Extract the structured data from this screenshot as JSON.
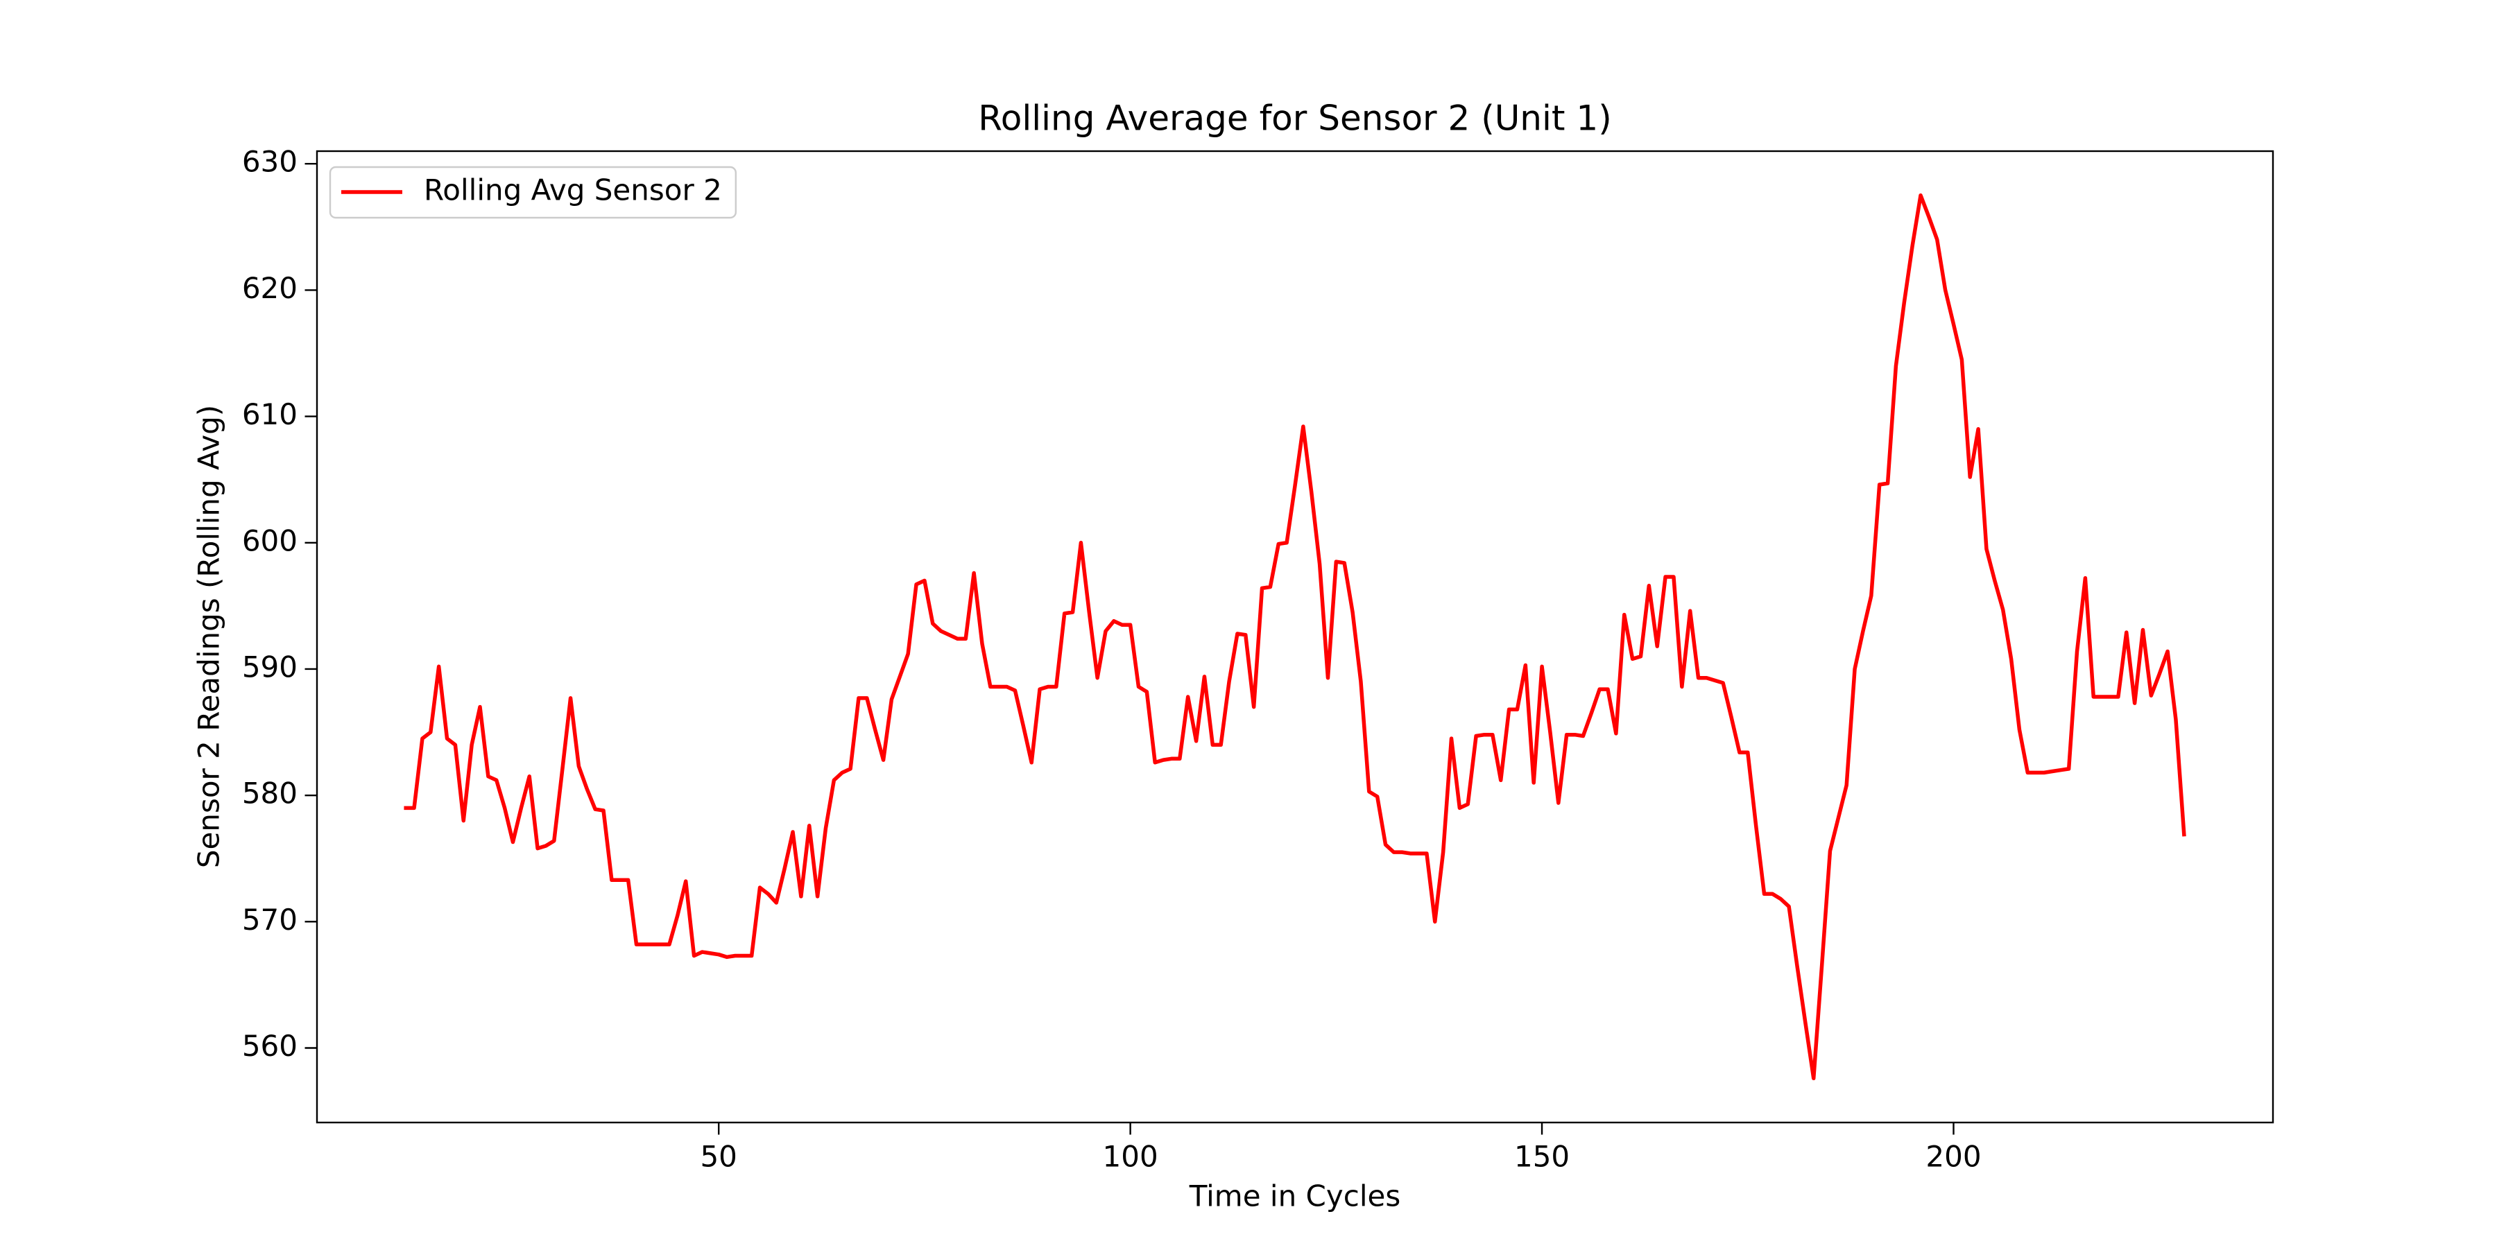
{
  "chart_data": {
    "type": "line",
    "title": "Rolling Average for Sensor 2 (Unit 1)",
    "x_label": "Time in Cycles",
    "y_label": "Sensor 2 Readings (Rolling Avg)",
    "x": [
      12,
      13,
      14,
      15,
      16,
      17,
      18,
      19,
      20,
      21,
      22,
      23,
      24,
      25,
      26,
      27,
      28,
      29,
      30,
      31,
      32,
      33,
      34,
      35,
      36,
      37,
      38,
      39,
      40,
      41,
      42,
      43,
      44,
      45,
      46,
      47,
      48,
      49,
      50,
      51,
      52,
      53,
      54,
      55,
      56,
      57,
      58,
      59,
      60,
      61,
      62,
      63,
      64,
      65,
      66,
      67,
      68,
      69,
      70,
      71,
      72,
      73,
      74,
      75,
      76,
      77,
      78,
      79,
      80,
      81,
      82,
      83,
      84,
      85,
      86,
      87,
      88,
      89,
      90,
      91,
      92,
      93,
      94,
      95,
      96,
      97,
      98,
      99,
      100,
      101,
      102,
      103,
      104,
      105,
      106,
      107,
      108,
      109,
      110,
      111,
      112,
      113,
      114,
      115,
      116,
      117,
      118,
      119,
      120,
      121,
      122,
      123,
      124,
      125,
      126,
      127,
      128,
      129,
      130,
      131,
      132,
      133,
      134,
      135,
      136,
      137,
      138,
      139,
      140,
      141,
      142,
      143,
      144,
      145,
      146,
      147,
      148,
      149,
      150,
      151,
      152,
      153,
      154,
      155,
      156,
      157,
      158,
      159,
      160,
      161,
      162,
      163,
      164,
      165,
      166,
      167,
      168,
      169,
      170,
      171,
      172,
      173,
      174,
      175,
      176,
      177,
      178,
      179,
      180,
      181,
      182,
      183,
      184,
      185,
      186,
      187,
      188,
      189,
      190,
      191,
      192,
      193,
      194,
      195,
      196,
      197,
      198,
      199,
      200,
      201,
      202,
      203,
      204,
      205,
      206,
      207,
      208,
      209,
      210,
      211,
      212,
      213,
      214,
      215,
      216,
      217,
      218,
      219,
      220,
      221,
      222,
      223,
      224,
      225,
      226,
      227,
      228
    ],
    "series": [
      {
        "name": "Rolling Avg Sensor 2",
        "color": "#ff0000",
        "values": [
          579,
          579,
          584.5,
          585,
          590.2,
          584.5,
          584,
          578,
          584,
          587,
          581.5,
          581.2,
          579,
          576.3,
          579,
          581.5,
          575.8,
          576,
          576.4,
          582,
          587.7,
          582.3,
          580.5,
          578.9,
          578.8,
          573.3,
          573.3,
          573.3,
          568.2,
          568.2,
          568.2,
          568.2,
          568.2,
          570.5,
          573.2,
          567.3,
          567.6,
          567.5,
          567.4,
          567.2,
          567.3,
          567.3,
          567.3,
          572.7,
          572.2,
          571.5,
          574.2,
          577.1,
          572,
          577.6,
          572,
          577.4,
          581.2,
          581.8,
          582.1,
          587.7,
          587.7,
          585.2,
          582.8,
          587.6,
          589.4,
          591.2,
          596.7,
          597,
          593.6,
          593,
          592.7,
          592.4,
          592.4,
          597.6,
          592,
          588.6,
          588.6,
          588.6,
          588.3,
          585.5,
          582.6,
          588.4,
          588.6,
          588.6,
          594.4,
          594.5,
          600,
          594.5,
          589.3,
          593,
          593.8,
          593.5,
          593.5,
          588.6,
          588.2,
          582.6,
          582.8,
          582.9,
          582.9,
          587.8,
          584.3,
          589.4,
          584,
          584,
          589,
          592.8,
          592.7,
          587,
          596.4,
          596.5,
          599.9,
          600,
          604.5,
          609.2,
          604,
          598.3,
          589.3,
          598.5,
          598.4,
          594.5,
          589,
          580.3,
          579.9,
          576.1,
          575.5,
          575.5,
          575.4,
          575.4,
          575.4,
          570,
          575.5,
          584.5,
          579,
          579.3,
          584.7,
          584.8,
          584.8,
          581.2,
          586.8,
          586.8,
          590.3,
          581,
          590.2,
          585,
          579.4,
          584.8,
          584.8,
          584.7,
          586.5,
          588.4,
          588.4,
          584.9,
          594.3,
          590.8,
          591,
          596.6,
          591.8,
          597.3,
          597.3,
          588.6,
          594.6,
          589.3,
          589.3,
          589.1,
          588.9,
          586.2,
          583.4,
          583.4,
          577.6,
          572.2,
          572.2,
          571.8,
          571.2,
          566.5,
          562,
          557.6,
          566.5,
          575.6,
          578.2,
          580.8,
          590,
          593,
          595.8,
          604.6,
          604.7,
          614,
          619,
          623.5,
          627.5,
          625.8,
          624,
          620,
          617.3,
          614.5,
          605.2,
          609,
          599.5,
          597,
          594.7,
          590.8,
          585.2,
          581.8,
          581.8,
          581.8,
          581.9,
          582,
          582.1,
          591.4,
          597.2,
          587.8,
          587.8,
          587.8,
          587.8,
          592.9,
          587.3,
          593.1,
          587.9,
          589.6,
          591.4,
          586,
          576.9
        ]
      }
    ],
    "xlim": [
      1.2,
      238.8
    ],
    "ylim": [
      554.1,
      631.0
    ],
    "xticks": [
      50,
      100,
      150,
      200
    ],
    "yticks": [
      560,
      570,
      580,
      590,
      600,
      610,
      620,
      630
    ],
    "legend": "upper left",
    "grid": false
  }
}
